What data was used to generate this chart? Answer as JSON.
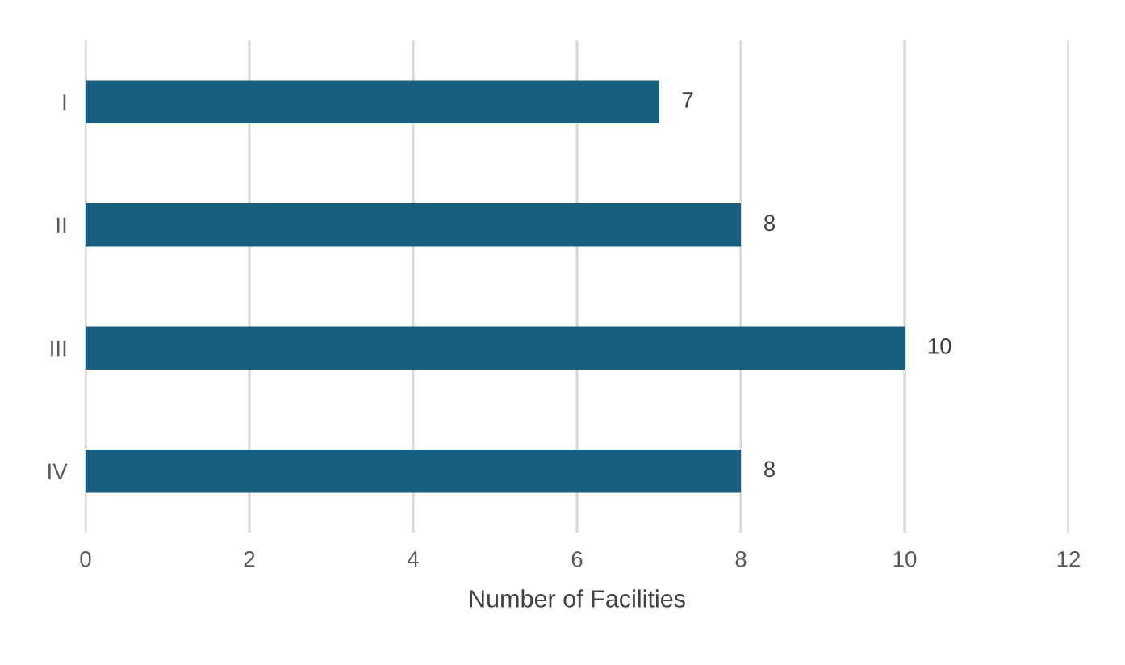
{
  "chart_data": {
    "type": "bar",
    "orientation": "horizontal",
    "categories": [
      "I",
      "II",
      "III",
      "IV"
    ],
    "values": [
      7,
      8,
      10,
      8
    ],
    "color": "#175f7e",
    "xlabel": "Number of Facilities",
    "xlim": [
      0,
      12
    ],
    "xticks": [
      0,
      2,
      4,
      6,
      8,
      10,
      12
    ],
    "grid": "x",
    "data_labels": true
  }
}
